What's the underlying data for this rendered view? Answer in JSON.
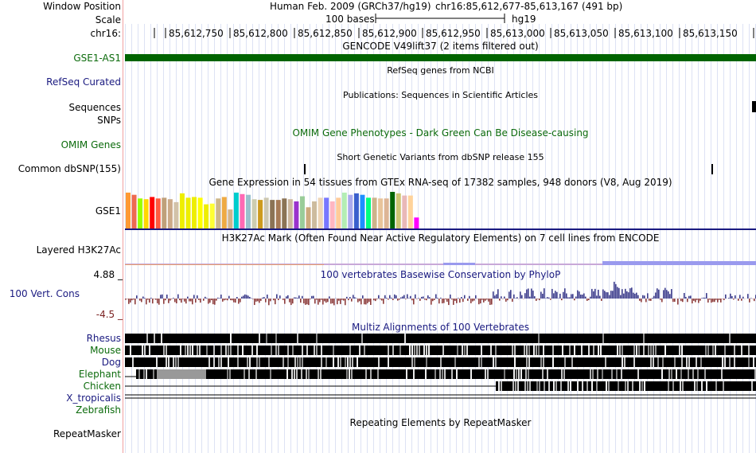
{
  "labels": {
    "window_position": "Window Position",
    "scale": "Scale",
    "chrom": "chr16:",
    "gse1_as1": "GSE1-AS1",
    "refseq": "RefSeq Curated",
    "sequences": "Sequences",
    "snps": "SNPs",
    "omim": "OMIM Genes",
    "common_snp": "Common dbSNP(155)",
    "gse1": "GSE1",
    "h3k27ac": "Layered H3K27Ac",
    "vert_cons": "100 Vert. Cons",
    "cons_max": "4.88 _",
    "cons_min": "-4.5 _",
    "species": [
      "Rhesus",
      "Mouse",
      "Dog",
      "Elephant",
      "Chicken",
      "X_tropicalis",
      "Zebrafish"
    ],
    "repeatmasker": "RepeatMasker"
  },
  "header": {
    "assembly": "Human Feb. 2009 (GRCh37/hg19)",
    "position": "chr16:85,612,677-85,613,167 (491 bp)",
    "scale_text": "100 bases",
    "scale_db": "hg19",
    "ticks": [
      "85,612,750",
      "85,612,800",
      "85,612,850",
      "85,612,900",
      "85,612,950",
      "85,613,000",
      "85,613,050",
      "85,613,100",
      "85,613,150"
    ]
  },
  "track_titles": {
    "gencode": "GENCODE V49lift37 (2 items filtered out)",
    "refseq": "RefSeq genes from NCBI",
    "publications": "Publications: Sequences in Scientific Articles",
    "omim": "OMIM Gene Phenotypes - Dark Green Can Be Disease-causing",
    "dbsnp": "Short Genetic Variants from dbSNP release 155",
    "gtex": "Gene Expression in 54 tissues from GTEx RNA-seq of 17382 samples, 948 donors (V8, Aug 2019)",
    "h3k27ac": "H3K27Ac Mark (Often Found Near Active Regulatory Elements) on 7 cell lines from ENCODE",
    "phylop": "100 vertebrates Basewise Conservation by PhyloP",
    "multiz": "Multiz Alignments of 100 Vertebrates",
    "rmsk": "Repeating Elements by RepeatMasker"
  },
  "colors": {
    "gencode": "#006400",
    "cons_pos": "#3c3c8c",
    "cons_neg": "#8c3c3c",
    "separator": "#f0a0a0",
    "green_label": "#0c6b0c",
    "navy_label": "#1a1a80"
  },
  "gtex_colors": [
    "#ff9933",
    "#ee6a50",
    "#99ff00",
    "#ffd700",
    "#ff0000",
    "#ff5a3d",
    "#bfa07a",
    "#ccaa88",
    "#d2c2a8",
    "#eeee00",
    "#eeee00",
    "#eeee00",
    "#ffff00",
    "#eeee00",
    "#ffff33",
    "#cdb78a",
    "#eeaa44",
    "#d2b48c",
    "#00cdcd",
    "#ff69b4",
    "#9ac0cd",
    "#cdcdb0",
    "#cd9b1d",
    "#cdc8b1",
    "#8b7355",
    "#a67a56",
    "#8b7355",
    "#cdb79e",
    "#9a32cd",
    "#99cc99",
    "#cdaa7d",
    "#cdbb9e",
    "#eed5b7",
    "#7777ff",
    "#ffb6c1",
    "#ffcc99",
    "#b4eeb4",
    "#aaaaee",
    "#3a5fcd",
    "#1e90ff",
    "#00ff7f",
    "#cdb38b",
    "#e8c49a",
    "#ddb595",
    "#006400",
    "#cdc673",
    "#e9b8b8",
    "#ffd39b",
    "#ff00ff"
  ],
  "gtex_values": [
    0.98,
    0.92,
    0.82,
    0.8,
    0.86,
    0.82,
    0.84,
    0.8,
    0.72,
    0.96,
    0.84,
    0.86,
    0.84,
    0.66,
    0.68,
    0.82,
    0.86,
    0.52,
    0.98,
    0.94,
    0.92,
    0.8,
    0.78,
    0.84,
    0.78,
    0.78,
    0.82,
    0.8,
    0.74,
    0.88,
    0.58,
    0.74,
    0.84,
    0.84,
    0.74,
    0.84,
    0.98,
    0.92,
    0.96,
    0.92,
    0.84,
    0.84,
    0.82,
    0.82,
    1.0,
    0.96,
    0.9,
    0.9,
    0.3
  ]
}
